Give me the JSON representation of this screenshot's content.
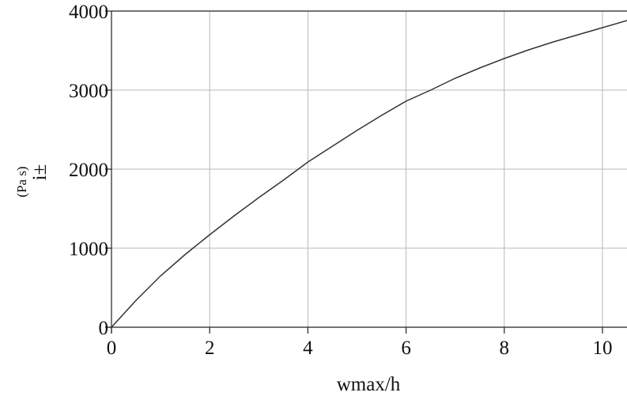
{
  "chart_data": {
    "type": "line",
    "title": "",
    "xlabel": "wmax/h",
    "ylabel": "i±",
    "yunit": "(Pa s)",
    "xlim": [
      0,
      10.5
    ],
    "ylim": [
      0,
      4000
    ],
    "xticks": [
      0,
      2,
      4,
      6,
      8,
      10
    ],
    "yticks": [
      0,
      1000,
      2000,
      3000,
      4000
    ],
    "grid": true,
    "line_color": "#333333",
    "series": [
      {
        "x": [
          0,
          0.5,
          1,
          1.5,
          2,
          2.5,
          3,
          3.5,
          4,
          4.5,
          5,
          5.5,
          6,
          6.5,
          7,
          7.5,
          8,
          8.5,
          9,
          9.5,
          10,
          10.5
        ],
        "y": [
          0,
          340,
          650,
          920,
          1170,
          1410,
          1640,
          1860,
          2090,
          2290,
          2490,
          2680,
          2860,
          3000,
          3150,
          3280,
          3400,
          3510,
          3610,
          3700,
          3790,
          3880
        ]
      }
    ]
  }
}
